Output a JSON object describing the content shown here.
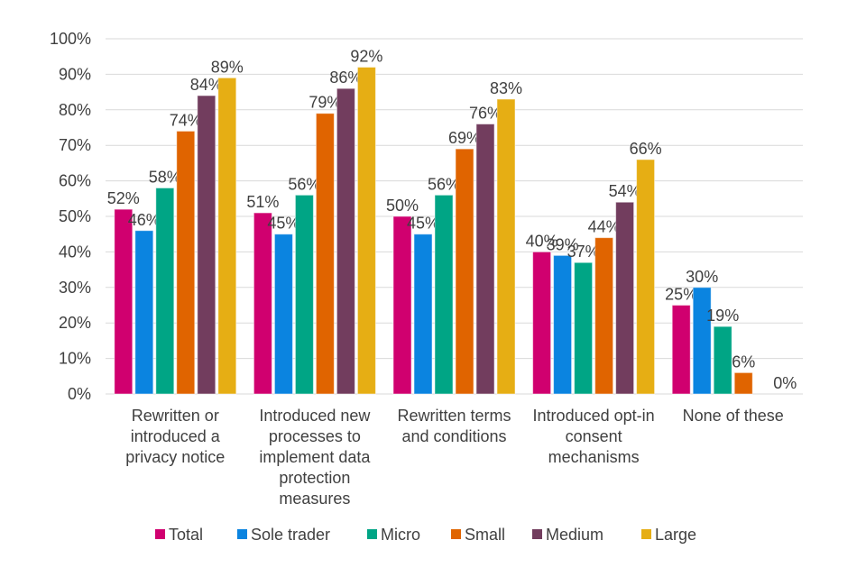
{
  "chart_data": {
    "type": "bar",
    "title": "",
    "xlabel": "",
    "ylabel": "",
    "ylim": [
      0,
      100
    ],
    "y_ticks": [
      "0%",
      "10%",
      "20%",
      "30%",
      "40%",
      "50%",
      "60%",
      "70%",
      "80%",
      "90%",
      "100%"
    ],
    "grid": true,
    "legend_position": "bottom",
    "categories": [
      [
        "Rewritten or",
        "introduced a",
        "privacy notice"
      ],
      [
        "Introduced new",
        "processes to",
        "implement data",
        "protection",
        "measures"
      ],
      [
        "Rewritten terms",
        "and conditions"
      ],
      [
        "Introduced opt-in",
        "consent",
        "mechanisms"
      ],
      [
        "None of these"
      ]
    ],
    "series": [
      {
        "name": "Total",
        "color": "#d0006f",
        "values": [
          52,
          51,
          50,
          40,
          25
        ]
      },
      {
        "name": "Sole trader",
        "color": "#0b84e0",
        "values": [
          46,
          45,
          45,
          39,
          30
        ]
      },
      {
        "name": "Micro",
        "color": "#00a585",
        "values": [
          58,
          56,
          56,
          37,
          19
        ]
      },
      {
        "name": "Small",
        "color": "#e06400",
        "values": [
          74,
          79,
          69,
          44,
          6
        ]
      },
      {
        "name": "Medium",
        "color": "#723d5e",
        "values": [
          84,
          86,
          76,
          54,
          null
        ]
      },
      {
        "name": "Large",
        "color": "#e6ae14",
        "values": [
          89,
          92,
          83,
          66,
          0
        ]
      }
    ]
  }
}
